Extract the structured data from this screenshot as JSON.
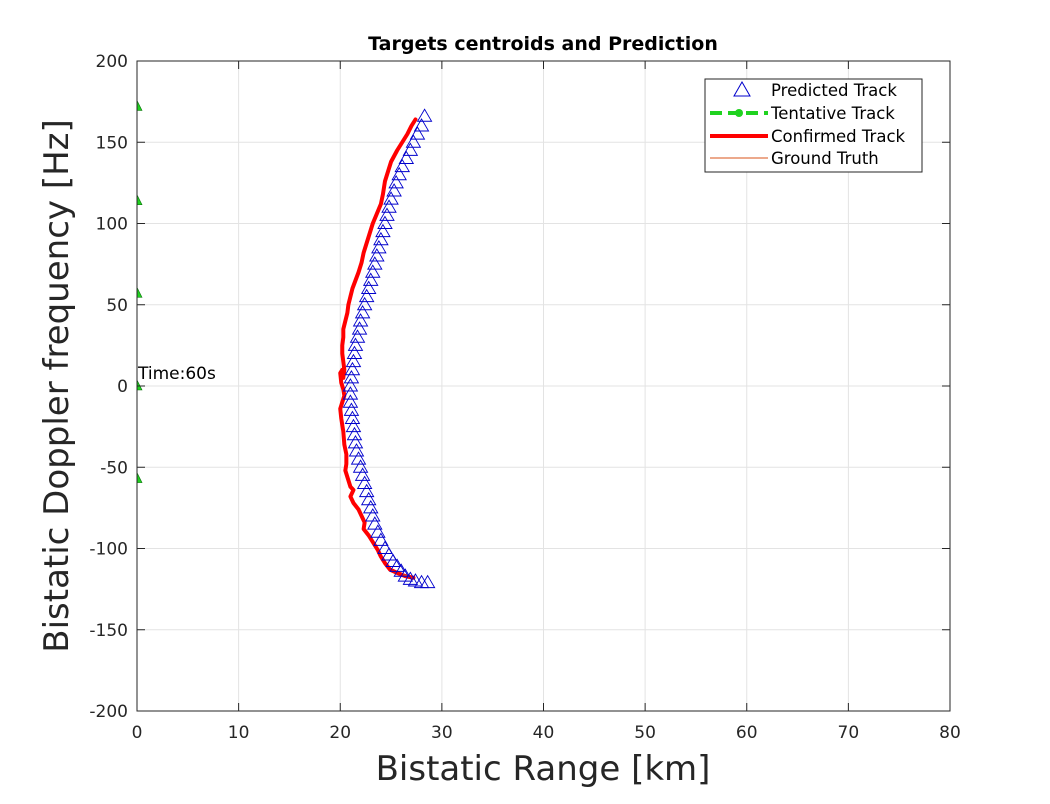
{
  "chart_data": {
    "type": "scatter",
    "title": "Targets centroids and Prediction",
    "xlabel": "Bistatic Range [km]",
    "ylabel": "Bistatic Doppler frequency [Hz]",
    "xlim": [
      0,
      80
    ],
    "ylim": [
      -200,
      200
    ],
    "xticks": [
      "0",
      "10",
      "20",
      "30",
      "40",
      "50",
      "60",
      "70",
      "80"
    ],
    "yticks": [
      "-200",
      "-150",
      "-100",
      "-50",
      "0",
      "50",
      "100",
      "150",
      "200"
    ],
    "grid": true,
    "legend_position": "top-right",
    "annotation": {
      "text": "Time:60s",
      "x": 0,
      "y": 8
    },
    "colors": {
      "predicted": "#0000cc",
      "tentative": "#1fd21f",
      "confirmed": "#ff0000",
      "ground_truth": "#d95319"
    },
    "series": [
      {
        "name": "Predicted Track",
        "style": "triangle-markers",
        "x": [
          28.3,
          28.0,
          27.6,
          27.2,
          26.9,
          26.5,
          26.1,
          25.8,
          25.5,
          25.3,
          25.0,
          24.8,
          24.6,
          24.4,
          24.2,
          24.0,
          23.8,
          23.6,
          23.4,
          23.2,
          23.0,
          22.8,
          22.6,
          22.4,
          22.2,
          22.0,
          21.9,
          21.7,
          21.5,
          21.4,
          21.3,
          21.2,
          21.1,
          21.0,
          21.0,
          21.0,
          21.1,
          21.2,
          21.3,
          21.4,
          21.5,
          21.6,
          21.8,
          22.0,
          22.2,
          22.4,
          22.6,
          22.8,
          23.0,
          23.2,
          23.4,
          23.7,
          24.0,
          24.4,
          24.8,
          25.2,
          25.6,
          26.0,
          26.4,
          26.9,
          27.4,
          28.0,
          28.6
        ],
        "y": [
          166,
          160,
          155,
          150,
          145,
          140,
          135,
          130,
          125,
          120,
          115,
          110,
          105,
          100,
          95,
          90,
          85,
          80,
          75,
          70,
          65,
          60,
          55,
          50,
          45,
          40,
          35,
          30,
          25,
          20,
          15,
          10,
          5,
          0,
          -5,
          -10,
          -15,
          -20,
          -25,
          -30,
          -35,
          -40,
          -45,
          -50,
          -55,
          -60,
          -65,
          -70,
          -75,
          -80,
          -85,
          -90,
          -95,
          -100,
          -104,
          -108,
          -111,
          -114,
          -117,
          -119,
          -120,
          -121,
          -121
        ]
      },
      {
        "name": "Tentative Track",
        "style": "dashed",
        "x": [
          0,
          0,
          0,
          0,
          0
        ],
        "y": [
          172,
          114,
          57,
          0,
          -57
        ]
      },
      {
        "name": "Confirmed Track",
        "style": "solid-thick",
        "x": [
          27.4,
          27.0,
          26.6,
          26.1,
          25.6,
          25.0,
          24.7,
          24.4,
          24.2,
          24.0,
          23.6,
          23.2,
          22.9,
          22.6,
          22.3,
          22.1,
          21.8,
          21.5,
          21.2,
          21.0,
          20.8,
          20.7,
          20.5,
          20.3,
          20.3,
          20.2,
          20.2,
          20.3,
          20.4,
          20.3,
          20.2,
          20.0,
          20.1,
          20.3,
          20.4,
          20.2,
          20.0,
          20.1,
          20.3,
          20.4,
          20.6,
          20.6,
          20.5,
          20.7,
          21.0,
          21.3,
          21.0,
          21.3,
          21.8,
          22.1,
          22.4,
          22.3,
          22.8,
          23.3,
          23.7,
          24.0,
          24.4,
          24.9,
          25.6,
          26.4,
          27.2
        ],
        "y": [
          164,
          160,
          155,
          150,
          145,
          138,
          132,
          126,
          118,
          112,
          106,
          100,
          94,
          88,
          82,
          76,
          70,
          65,
          60,
          55,
          50,
          45,
          40,
          35,
          30,
          25,
          20,
          15,
          10,
          5,
          10,
          8,
          2,
          -2,
          -6,
          -10,
          -14,
          -20,
          -28,
          -36,
          -42,
          -48,
          -52,
          -56,
          -62,
          -64,
          -68,
          -72,
          -76,
          -80,
          -84,
          -88,
          -92,
          -97,
          -101,
          -105,
          -109,
          -113,
          -115,
          -117,
          -118
        ]
      },
      {
        "name": "Ground Truth",
        "style": "thin-line",
        "x": [
          26.2,
          27.0
        ],
        "y": [
          -116,
          -118
        ]
      }
    ]
  }
}
